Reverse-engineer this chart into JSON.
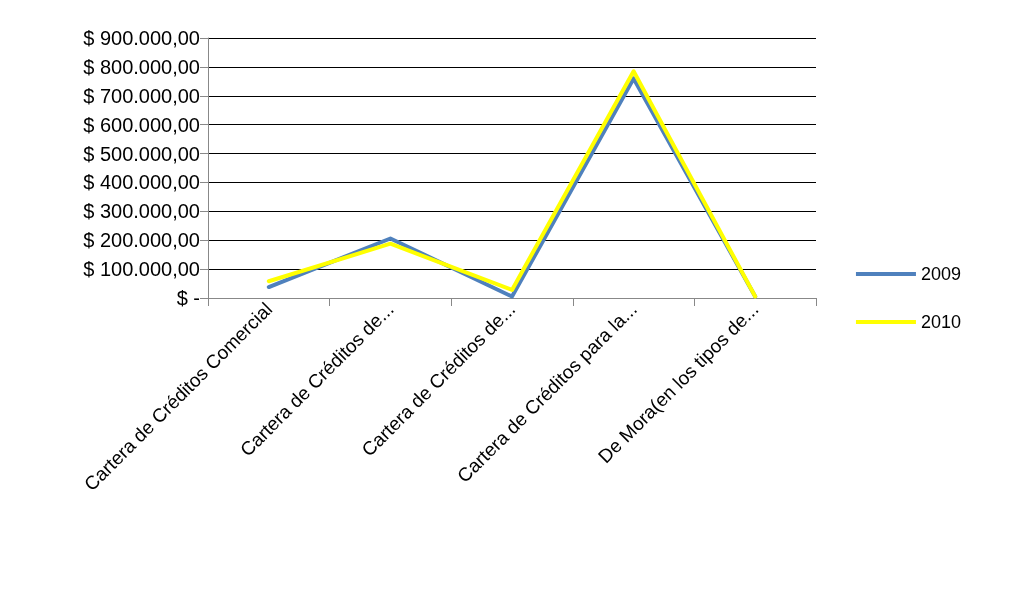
{
  "chart_data": {
    "type": "line",
    "categories": [
      "Cartera de Créditos Comercial",
      "Cartera de Créditos de...",
      "Cartera de Créditos de...",
      "Cartera de Créditos para la...",
      "De Mora(en los tipos de..."
    ],
    "series": [
      {
        "name": "2009",
        "color": "#4f81bd",
        "values": [
          38000,
          206000,
          5000,
          760000,
          5000
        ]
      },
      {
        "name": "2010",
        "color": "#ffff00",
        "values": [
          58000,
          188000,
          28000,
          785000,
          5000
        ]
      }
    ],
    "ylim": [
      0,
      900000
    ],
    "yticks": [
      {
        "value": 0,
        "label": "$ -"
      },
      {
        "value": 100000,
        "label": "$ 100.000,00"
      },
      {
        "value": 200000,
        "label": "$ 200.000,00"
      },
      {
        "value": 300000,
        "label": "$ 300.000,00"
      },
      {
        "value": 400000,
        "label": "$ 400.000,00"
      },
      {
        "value": 500000,
        "label": "$ 500.000,00"
      },
      {
        "value": 600000,
        "label": "$ 600.000,00"
      },
      {
        "value": 700000,
        "label": "$ 700.000,00"
      },
      {
        "value": 800000,
        "label": "$ 800.000,00"
      },
      {
        "value": 900000,
        "label": "$ 900.000,00"
      }
    ],
    "grid": "y",
    "legend": "right",
    "marker": "none",
    "line_style": "solid"
  }
}
